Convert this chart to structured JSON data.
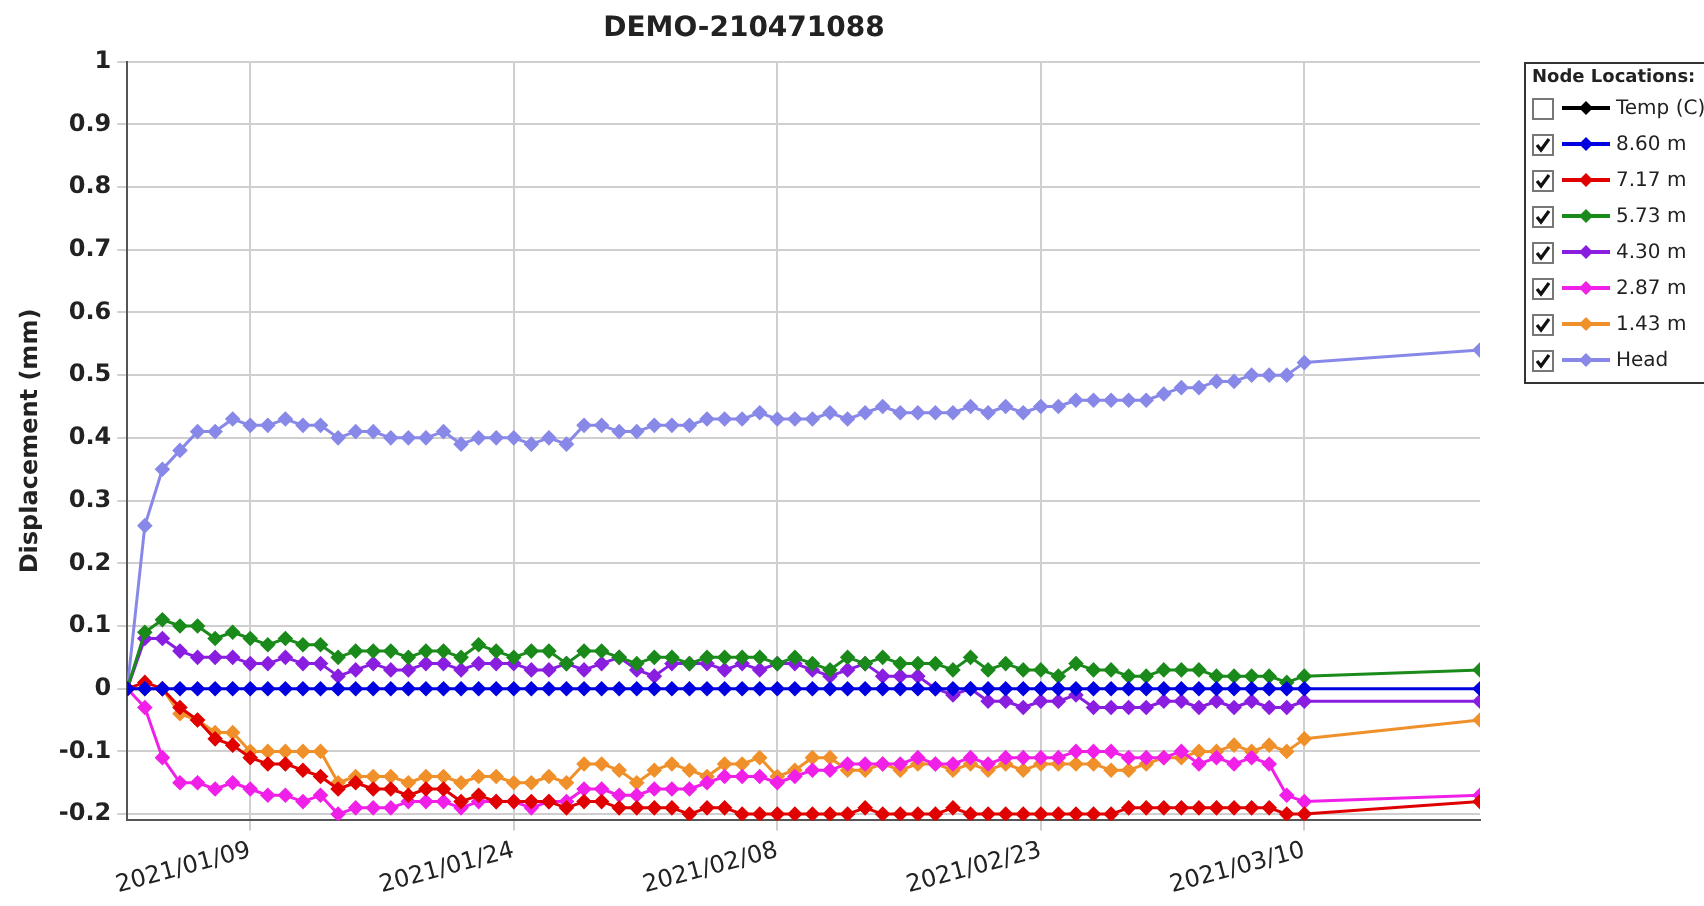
{
  "chart_data": {
    "type": "line",
    "title": "DEMO-210471088",
    "ylabel": "Displacement (mm)",
    "legend_title": "Node Locations:",
    "legend": "top right",
    "grid": true,
    "marker": "diamond",
    "line_style": "solid",
    "xlim": [
      "2021-01-02",
      "2021-03-20"
    ],
    "xticks": [
      {
        "value": "2021-01-09",
        "label": "2021/01/09"
      },
      {
        "value": "2021-01-24",
        "label": "2021/01/24"
      },
      {
        "value": "2021-02-08",
        "label": "2021/02/08"
      },
      {
        "value": "2021-02-23",
        "label": "2021/02/23"
      },
      {
        "value": "2021-03-10",
        "label": "2021/03/10"
      }
    ],
    "ylim": [
      -0.21,
      1
    ],
    "yticks": [
      -0.2,
      -0.1,
      0,
      0.1,
      0.2,
      0.3,
      0.4,
      0.5,
      0.6,
      0.7,
      0.8,
      0.9,
      1
    ],
    "x": [
      "2021-01-02",
      "2021-01-03",
      "2021-01-04",
      "2021-01-05",
      "2021-01-06",
      "2021-01-07",
      "2021-01-08",
      "2021-01-09",
      "2021-01-10",
      "2021-01-11",
      "2021-01-12",
      "2021-01-13",
      "2021-01-14",
      "2021-01-15",
      "2021-01-16",
      "2021-01-17",
      "2021-01-18",
      "2021-01-19",
      "2021-01-20",
      "2021-01-21",
      "2021-01-22",
      "2021-01-23",
      "2021-01-24",
      "2021-01-25",
      "2021-01-26",
      "2021-01-27",
      "2021-01-28",
      "2021-01-29",
      "2021-01-30",
      "2021-01-31",
      "2021-02-01",
      "2021-02-02",
      "2021-02-03",
      "2021-02-04",
      "2021-02-05",
      "2021-02-06",
      "2021-02-07",
      "2021-02-08",
      "2021-02-09",
      "2021-02-10",
      "2021-02-11",
      "2021-02-12",
      "2021-02-13",
      "2021-02-14",
      "2021-02-15",
      "2021-02-16",
      "2021-02-17",
      "2021-02-18",
      "2021-02-19",
      "2021-02-20",
      "2021-02-21",
      "2021-02-22",
      "2021-02-23",
      "2021-02-24",
      "2021-02-25",
      "2021-02-26",
      "2021-02-27",
      "2021-02-28",
      "2021-03-01",
      "2021-03-02",
      "2021-03-03",
      "2021-03-04",
      "2021-03-05",
      "2021-03-06",
      "2021-03-07",
      "2021-03-08",
      "2021-03-09",
      "2021-03-10",
      "2021-03-20"
    ],
    "series": [
      {
        "name": "Temp (C)",
        "color": "#000000",
        "values": [
          null,
          null,
          null,
          null,
          null,
          null,
          null,
          null,
          null,
          null,
          null,
          null,
          null,
          null,
          null,
          null,
          null,
          null,
          null,
          null,
          null,
          null,
          null,
          null,
          null,
          null,
          null,
          null,
          null,
          null,
          null,
          null,
          null,
          null,
          null,
          null,
          null,
          null,
          null,
          null,
          null,
          null,
          null,
          null,
          null,
          null,
          null,
          null,
          null,
          null,
          null,
          null,
          null,
          null,
          null,
          null,
          null,
          null,
          null,
          null,
          null,
          null,
          null,
          null,
          null,
          null,
          null,
          null,
          null
        ]
      },
      {
        "name": "8.60 m",
        "color": "#0000e0",
        "values": [
          0,
          0,
          0,
          0,
          0,
          0,
          0,
          0,
          0,
          0,
          0,
          0,
          0,
          0,
          0,
          0,
          0,
          0,
          0,
          0,
          0,
          0,
          0,
          0,
          0,
          0,
          0,
          0,
          0,
          0,
          0,
          0,
          0,
          0,
          0,
          0,
          0,
          0,
          0,
          0,
          0,
          0,
          0,
          0,
          0,
          0,
          0,
          0,
          0,
          0,
          0,
          0,
          0,
          0,
          0,
          0,
          0,
          0,
          0,
          0,
          0,
          0,
          0,
          0,
          0,
          0,
          0,
          0,
          0
        ]
      },
      {
        "name": "7.17 m",
        "color": "#e00000",
        "values": [
          0,
          0.01,
          0,
          -0.03,
          -0.05,
          -0.08,
          -0.09,
          -0.11,
          -0.12,
          -0.12,
          -0.13,
          -0.14,
          -0.16,
          -0.15,
          -0.16,
          -0.16,
          -0.17,
          -0.16,
          -0.16,
          -0.18,
          -0.17,
          -0.18,
          -0.18,
          -0.18,
          -0.18,
          -0.19,
          -0.18,
          -0.18,
          -0.19,
          -0.19,
          -0.19,
          -0.19,
          -0.2,
          -0.19,
          -0.19,
          -0.2,
          -0.2,
          -0.2,
          -0.2,
          -0.2,
          -0.2,
          -0.2,
          -0.19,
          -0.2,
          -0.2,
          -0.2,
          -0.2,
          -0.19,
          -0.2,
          -0.2,
          -0.2,
          -0.2,
          -0.2,
          -0.2,
          -0.2,
          -0.2,
          -0.2,
          -0.19,
          -0.19,
          -0.19,
          -0.19,
          -0.19,
          -0.19,
          -0.19,
          -0.19,
          -0.19,
          -0.2,
          -0.2,
          -0.18
        ]
      },
      {
        "name": "5.73 m",
        "color": "#1a8a1a",
        "values": [
          0,
          0.09,
          0.11,
          0.1,
          0.1,
          0.08,
          0.09,
          0.08,
          0.07,
          0.08,
          0.07,
          0.07,
          0.05,
          0.06,
          0.06,
          0.06,
          0.05,
          0.06,
          0.06,
          0.05,
          0.07,
          0.06,
          0.05,
          0.06,
          0.06,
          0.04,
          0.06,
          0.06,
          0.05,
          0.04,
          0.05,
          0.05,
          0.04,
          0.05,
          0.05,
          0.05,
          0.05,
          0.04,
          0.05,
          0.04,
          0.03,
          0.05,
          0.04,
          0.05,
          0.04,
          0.04,
          0.04,
          0.03,
          0.05,
          0.03,
          0.04,
          0.03,
          0.03,
          0.02,
          0.04,
          0.03,
          0.03,
          0.02,
          0.02,
          0.03,
          0.03,
          0.03,
          0.02,
          0.02,
          0.02,
          0.02,
          0.01,
          0.02,
          0.03
        ]
      },
      {
        "name": "4.30 m",
        "color": "#8a1ee0",
        "values": [
          0,
          0.08,
          0.08,
          0.06,
          0.05,
          0.05,
          0.05,
          0.04,
          0.04,
          0.05,
          0.04,
          0.04,
          0.02,
          0.03,
          0.04,
          0.03,
          0.03,
          0.04,
          0.04,
          0.03,
          0.04,
          0.04,
          0.04,
          0.03,
          0.03,
          0.04,
          0.03,
          0.04,
          0.05,
          0.03,
          0.02,
          0.04,
          0.04,
          0.04,
          0.03,
          0.04,
          0.03,
          0.04,
          0.04,
          0.03,
          0.02,
          0.03,
          0.04,
          0.02,
          0.02,
          0.02,
          0,
          -0.01,
          0,
          -0.02,
          -0.02,
          -0.03,
          -0.02,
          -0.02,
          -0.01,
          -0.03,
          -0.03,
          -0.03,
          -0.03,
          -0.02,
          -0.02,
          -0.03,
          -0.02,
          -0.03,
          -0.02,
          -0.03,
          -0.03,
          -0.02,
          -0.02
        ]
      },
      {
        "name": "2.87 m",
        "color": "#f020e8",
        "values": [
          0,
          -0.03,
          -0.11,
          -0.15,
          -0.15,
          -0.16,
          -0.15,
          -0.16,
          -0.17,
          -0.17,
          -0.18,
          -0.17,
          -0.2,
          -0.19,
          -0.19,
          -0.19,
          -0.18,
          -0.18,
          -0.18,
          -0.19,
          -0.18,
          -0.18,
          -0.18,
          -0.19,
          -0.18,
          -0.18,
          -0.16,
          -0.16,
          -0.17,
          -0.17,
          -0.16,
          -0.16,
          -0.16,
          -0.15,
          -0.14,
          -0.14,
          -0.14,
          -0.15,
          -0.14,
          -0.13,
          -0.13,
          -0.12,
          -0.12,
          -0.12,
          -0.12,
          -0.11,
          -0.12,
          -0.12,
          -0.11,
          -0.12,
          -0.11,
          -0.11,
          -0.11,
          -0.11,
          -0.1,
          -0.1,
          -0.1,
          -0.11,
          -0.11,
          -0.11,
          -0.1,
          -0.12,
          -0.11,
          -0.12,
          -0.11,
          -0.12,
          -0.17,
          -0.18,
          -0.17
        ]
      },
      {
        "name": "1.43 m",
        "color": "#f0902a",
        "values": [
          0,
          0,
          0,
          -0.04,
          -0.05,
          -0.07,
          -0.07,
          -0.1,
          -0.1,
          -0.1,
          -0.1,
          -0.1,
          -0.15,
          -0.14,
          -0.14,
          -0.14,
          -0.15,
          -0.14,
          -0.14,
          -0.15,
          -0.14,
          -0.14,
          -0.15,
          -0.15,
          -0.14,
          -0.15,
          -0.12,
          -0.12,
          -0.13,
          -0.15,
          -0.13,
          -0.12,
          -0.13,
          -0.14,
          -0.12,
          -0.12,
          -0.11,
          -0.14,
          -0.13,
          -0.11,
          -0.11,
          -0.13,
          -0.13,
          -0.12,
          -0.13,
          -0.12,
          -0.12,
          -0.13,
          -0.12,
          -0.13,
          -0.12,
          -0.13,
          -0.12,
          -0.12,
          -0.12,
          -0.12,
          -0.13,
          -0.13,
          -0.12,
          -0.11,
          -0.11,
          -0.1,
          -0.1,
          -0.09,
          -0.1,
          -0.09,
          -0.1,
          -0.08,
          -0.05
        ]
      },
      {
        "name": "Head",
        "color": "#8888e8",
        "values": [
          0,
          0.26,
          0.35,
          0.38,
          0.41,
          0.41,
          0.43,
          0.42,
          0.42,
          0.43,
          0.42,
          0.42,
          0.4,
          0.41,
          0.41,
          0.4,
          0.4,
          0.4,
          0.41,
          0.39,
          0.4,
          0.4,
          0.4,
          0.39,
          0.4,
          0.39,
          0.42,
          0.42,
          0.41,
          0.41,
          0.42,
          0.42,
          0.42,
          0.43,
          0.43,
          0.43,
          0.44,
          0.43,
          0.43,
          0.43,
          0.44,
          0.43,
          0.44,
          0.45,
          0.44,
          0.44,
          0.44,
          0.44,
          0.45,
          0.44,
          0.45,
          0.44,
          0.45,
          0.45,
          0.46,
          0.46,
          0.46,
          0.46,
          0.46,
          0.47,
          0.48,
          0.48,
          0.49,
          0.49,
          0.5,
          0.5,
          0.5,
          0.52,
          0.54
        ]
      }
    ]
  }
}
